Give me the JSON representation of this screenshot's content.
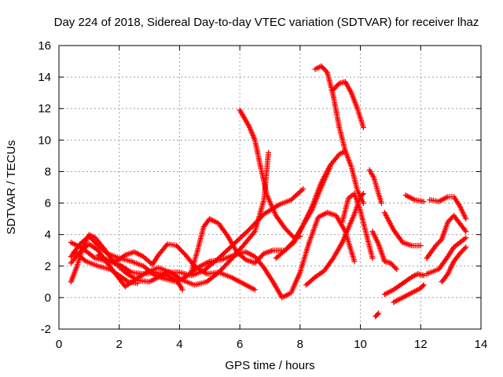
{
  "chart_data": {
    "type": "scatter",
    "title": "Day 224 of 2018, Sidereal Day-to-day VTEC variation (SDTVAR) for receiver lhaz",
    "xlabel": "GPS time / hours",
    "ylabel": "SDTVAR / TECUs",
    "xlim": [
      0,
      14
    ],
    "ylim": [
      -2,
      16
    ],
    "x_ticks": [
      0,
      2,
      4,
      6,
      8,
      10,
      12,
      14
    ],
    "y_ticks": [
      -2,
      0,
      2,
      4,
      6,
      8,
      10,
      12,
      14,
      16
    ],
    "grid": true,
    "marker": "+",
    "colors": {
      "series": "#ff0000",
      "grid": "#a0a0a0",
      "axis": "#000000"
    },
    "series": [
      {
        "points": [
          [
            0.4,
            1.0
          ],
          [
            0.6,
            2.0
          ],
          [
            0.8,
            3.2
          ],
          [
            1.0,
            4.0
          ],
          [
            1.2,
            3.8
          ],
          [
            1.5,
            3.1
          ],
          [
            1.8,
            2.3
          ],
          [
            2.2,
            1.6
          ],
          [
            2.6,
            1.1
          ],
          [
            3.0,
            1.0
          ],
          [
            3.3,
            1.3
          ],
          [
            3.6,
            1.6
          ],
          [
            4.0,
            1.6
          ],
          [
            4.4,
            1.4
          ],
          [
            4.8,
            1.7
          ],
          [
            5.3,
            2.5
          ],
          [
            5.8,
            3.4
          ],
          [
            6.3,
            4.3
          ],
          [
            6.8,
            5.3
          ],
          [
            7.3,
            5.9
          ],
          [
            7.7,
            6.2
          ],
          [
            8.1,
            6.9
          ]
        ]
      },
      {
        "points": [
          [
            0.4,
            2.2
          ],
          [
            0.7,
            2.9
          ],
          [
            1.0,
            3.4
          ],
          [
            1.3,
            3.0
          ],
          [
            1.6,
            2.2
          ],
          [
            2.0,
            1.2
          ],
          [
            2.2,
            0.7
          ],
          [
            2.5,
            1.1
          ],
          [
            2.9,
            1.6
          ],
          [
            3.3,
            1.9
          ],
          [
            3.7,
            1.6
          ],
          [
            4.1,
            1.1
          ],
          [
            4.5,
            0.8
          ],
          [
            4.9,
            1.0
          ],
          [
            5.3,
            1.6
          ],
          [
            5.8,
            2.6
          ],
          [
            6.2,
            3.5
          ],
          [
            6.5,
            4.2
          ],
          [
            6.8,
            6.2
          ],
          [
            6.9,
            8.2
          ],
          [
            6.95,
            9.2
          ]
        ]
      },
      {
        "points": [
          [
            0.4,
            2.6
          ],
          [
            0.7,
            3.4
          ],
          [
            1.0,
            3.9
          ],
          [
            1.3,
            3.3
          ],
          [
            1.6,
            2.8
          ],
          [
            2.0,
            2.5
          ],
          [
            2.4,
            2.3
          ],
          [
            2.8,
            2.0
          ],
          [
            3.2,
            1.4
          ],
          [
            3.5,
            1.2
          ],
          [
            3.9,
            1.0
          ],
          [
            4.2,
            1.3
          ],
          [
            4.6,
            1.9
          ],
          [
            5.0,
            2.3
          ],
          [
            5.4,
            2.4
          ],
          [
            5.8,
            2.7
          ],
          [
            6.2,
            2.9
          ],
          [
            6.5,
            2.6
          ],
          [
            6.8,
            1.9
          ],
          [
            7.1,
            1.0
          ],
          [
            7.4,
            0.0
          ],
          [
            7.7,
            0.3
          ],
          [
            8.0,
            1.6
          ],
          [
            8.3,
            3.5
          ],
          [
            8.6,
            5.1
          ],
          [
            8.9,
            5.4
          ],
          [
            9.2,
            5.2
          ],
          [
            9.5,
            4.2
          ],
          [
            9.8,
            2.3
          ]
        ]
      },
      {
        "points": [
          [
            0.4,
            3.5
          ],
          [
            0.8,
            3.1
          ],
          [
            1.2,
            2.5
          ],
          [
            1.6,
            2.3
          ],
          [
            2.0,
            2.1
          ],
          [
            2.4,
            1.6
          ],
          [
            2.8,
            1.5
          ],
          [
            3.2,
            1.6
          ],
          [
            3.6,
            1.4
          ],
          [
            3.9,
            1.1
          ],
          [
            4.1,
            0.5
          ]
        ]
      },
      {
        "points": [
          [
            0.5,
            2.9
          ],
          [
            0.9,
            2.3
          ],
          [
            1.3,
            2.0
          ],
          [
            1.7,
            1.8
          ],
          [
            2.0,
            1.4
          ],
          [
            2.3,
            1.0
          ],
          [
            2.6,
            0.9
          ]
        ]
      },
      {
        "points": [
          [
            1.3,
            2.7
          ],
          [
            1.6,
            2.4
          ],
          [
            1.9,
            2.3
          ],
          [
            2.2,
            2.7
          ],
          [
            2.5,
            2.9
          ],
          [
            2.8,
            2.6
          ],
          [
            3.1,
            2.1
          ],
          [
            3.3,
            2.7
          ],
          [
            3.6,
            3.4
          ],
          [
            3.9,
            3.3
          ],
          [
            4.2,
            2.7
          ],
          [
            4.5,
            2.0
          ],
          [
            4.9,
            1.5
          ],
          [
            5.3,
            1.6
          ],
          [
            5.7,
            1.3
          ],
          [
            6.1,
            0.9
          ],
          [
            6.5,
            0.5
          ]
        ]
      },
      {
        "points": [
          [
            4.4,
            1.7
          ],
          [
            4.6,
            3.0
          ],
          [
            4.8,
            4.5
          ],
          [
            5.0,
            5.0
          ],
          [
            5.3,
            4.7
          ],
          [
            5.6,
            3.9
          ],
          [
            5.9,
            2.9
          ],
          [
            6.2,
            2.4
          ],
          [
            6.5,
            2.2
          ],
          [
            6.8,
            2.8
          ],
          [
            7.1,
            3.0
          ],
          [
            7.5,
            3.0
          ],
          [
            7.8,
            3.5
          ],
          [
            8.1,
            4.6
          ],
          [
            8.4,
            5.8
          ],
          [
            8.7,
            7.3
          ],
          [
            9.0,
            8.4
          ],
          [
            9.3,
            9.1
          ],
          [
            9.5,
            9.3
          ]
        ]
      },
      {
        "points": [
          [
            6.0,
            11.9
          ],
          [
            6.3,
            10.9
          ],
          [
            6.5,
            10.0
          ],
          [
            6.7,
            8.2
          ],
          [
            6.9,
            6.5
          ],
          [
            7.2,
            5.2
          ],
          [
            7.5,
            4.4
          ],
          [
            7.8,
            3.8
          ],
          [
            8.0,
            3.9
          ]
        ]
      },
      {
        "points": [
          [
            7.2,
            2.5
          ],
          [
            7.5,
            3.0
          ],
          [
            7.8,
            3.6
          ],
          [
            8.1,
            4.6
          ],
          [
            8.4,
            5.6
          ],
          [
            8.7,
            7.0
          ],
          [
            9.0,
            8.3
          ]
        ]
      },
      {
        "points": [
          [
            8.5,
            14.5
          ],
          [
            8.7,
            14.7
          ],
          [
            8.9,
            14.3
          ],
          [
            9.1,
            12.8
          ],
          [
            9.3,
            10.8
          ],
          [
            9.5,
            9.3
          ],
          [
            9.7,
            8.3
          ],
          [
            9.9,
            6.8
          ],
          [
            10.1,
            6.0
          ]
        ]
      },
      {
        "points": [
          [
            9.1,
            13.2
          ],
          [
            9.3,
            13.6
          ],
          [
            9.5,
            13.7
          ],
          [
            9.7,
            13.0
          ],
          [
            9.9,
            12.0
          ],
          [
            10.1,
            10.8
          ]
        ]
      },
      {
        "points": [
          [
            8.2,
            0.8
          ],
          [
            8.5,
            1.3
          ],
          [
            8.8,
            1.7
          ],
          [
            9.1,
            2.5
          ],
          [
            9.4,
            3.5
          ],
          [
            9.6,
            4.4
          ],
          [
            9.8,
            5.3
          ],
          [
            10.0,
            6.4
          ],
          [
            10.1,
            6.6
          ]
        ]
      },
      {
        "points": [
          [
            9.4,
            4.8
          ],
          [
            9.6,
            6.3
          ],
          [
            9.8,
            6.6
          ],
          [
            10.0,
            5.5
          ],
          [
            10.2,
            4.0
          ],
          [
            10.4,
            2.5
          ]
        ]
      },
      {
        "points": [
          [
            10.3,
            8.1
          ],
          [
            10.45,
            7.6
          ],
          [
            10.6,
            6.6
          ],
          [
            10.7,
            6.0
          ]
        ]
      },
      {
        "points": [
          [
            10.4,
            4.2
          ],
          [
            10.6,
            3.4
          ],
          [
            10.8,
            2.3
          ],
          [
            11.0,
            2.2
          ],
          [
            11.2,
            1.8
          ]
        ]
      },
      {
        "points": [
          [
            10.8,
            5.4
          ],
          [
            11.1,
            4.3
          ],
          [
            11.4,
            3.5
          ],
          [
            11.7,
            3.3
          ],
          [
            12.0,
            3.3
          ]
        ]
      },
      {
        "points": [
          [
            10.5,
            -1.2
          ],
          [
            10.6,
            -1.0
          ]
        ]
      },
      {
        "points": [
          [
            10.8,
            0.2
          ],
          [
            11.1,
            0.5
          ],
          [
            11.4,
            0.9
          ],
          [
            11.7,
            1.3
          ],
          [
            11.9,
            1.5
          ],
          [
            12.1,
            1.4
          ]
        ]
      },
      {
        "points": [
          [
            11.1,
            -0.3
          ],
          [
            11.4,
            0.0
          ],
          [
            11.7,
            0.3
          ],
          [
            12.0,
            0.6
          ],
          [
            12.1,
            0.8
          ]
        ]
      },
      {
        "points": [
          [
            11.5,
            6.5
          ],
          [
            11.8,
            6.2
          ],
          [
            12.1,
            6.1
          ]
        ]
      },
      {
        "points": [
          [
            12.3,
            6.2
          ],
          [
            12.6,
            6.1
          ],
          [
            12.9,
            6.4
          ],
          [
            13.1,
            6.4
          ],
          [
            13.3,
            5.8
          ],
          [
            13.5,
            5.0
          ]
        ]
      },
      {
        "points": [
          [
            12.2,
            2.5
          ],
          [
            12.5,
            3.3
          ],
          [
            12.7,
            3.7
          ],
          [
            12.9,
            4.8
          ],
          [
            13.1,
            5.2
          ],
          [
            13.3,
            4.7
          ],
          [
            13.5,
            4.2
          ]
        ]
      },
      {
        "points": [
          [
            12.2,
            1.5
          ],
          [
            12.6,
            1.8
          ],
          [
            12.9,
            2.6
          ],
          [
            13.1,
            3.2
          ],
          [
            13.3,
            3.5
          ],
          [
            13.5,
            3.8
          ]
        ]
      },
      {
        "points": [
          [
            12.7,
            1.0
          ],
          [
            12.9,
            1.5
          ],
          [
            13.1,
            2.3
          ],
          [
            13.3,
            2.8
          ],
          [
            13.5,
            3.2
          ]
        ]
      }
    ]
  }
}
